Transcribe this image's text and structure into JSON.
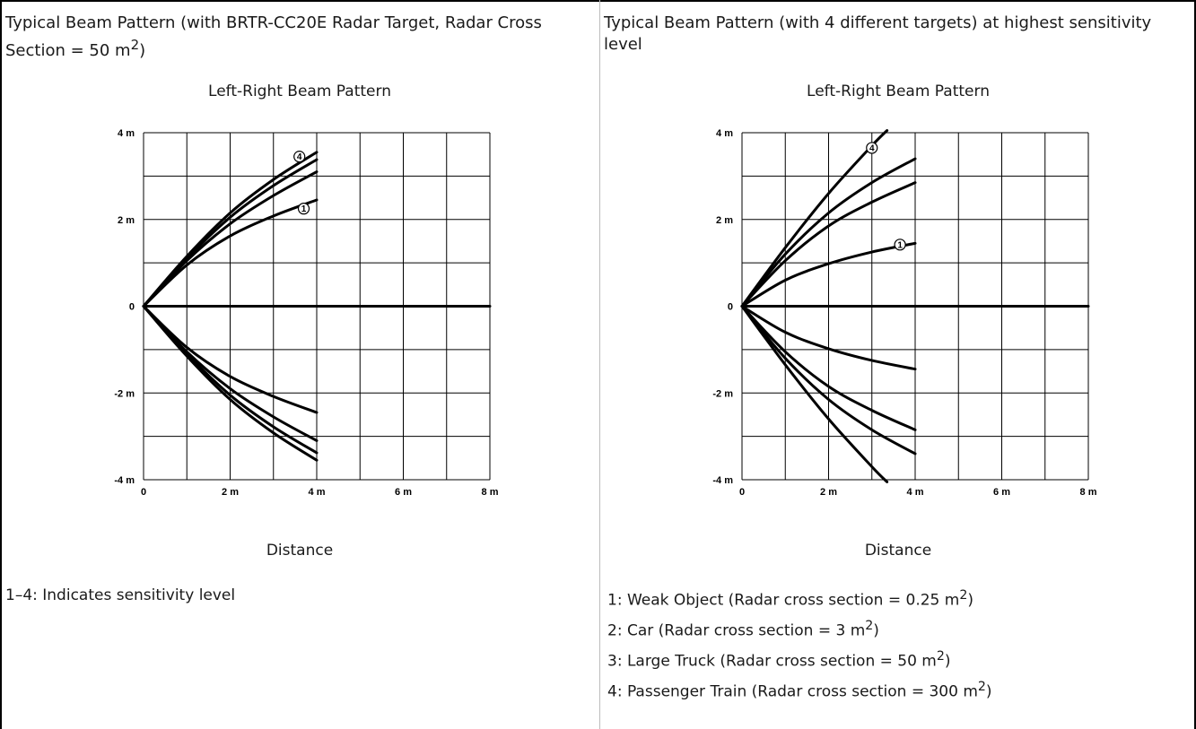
{
  "panels": [
    {
      "heading_text": "Typical Beam Pattern (with BRTR-CC20E Radar Target, Radar Cross Section = 50 m",
      "heading_sup": "2",
      "heading_tail": ")",
      "note": "1–4: Indicates sensitivity level"
    },
    {
      "heading_text": "Typical Beam Pattern (with 4 different targets) at highest sensitivity level",
      "legend": [
        {
          "text": "1: Weak Object (Radar cross section = 0.25 m",
          "sup": "2",
          "tail": ")"
        },
        {
          "text": "2: Car (Radar cross section = 3 m",
          "sup": "2",
          "tail": ")"
        },
        {
          "text": "3: Large Truck (Radar cross section = 50 m",
          "sup": "2",
          "tail": ")"
        },
        {
          "text": "4: Passenger Train (Radar cross section = 300 m",
          "sup": "2",
          "tail": ")"
        }
      ]
    }
  ],
  "chart_data": [
    {
      "type": "line",
      "title": "Left-Right Beam Pattern",
      "xlabel": "Distance",
      "ylabel": "",
      "xlim": [
        0,
        8
      ],
      "ylim": [
        -4,
        4
      ],
      "x_ticks": [
        {
          "v": 0,
          "label": "0"
        },
        {
          "v": 2,
          "label": "2 m"
        },
        {
          "v": 4,
          "label": "4 m"
        },
        {
          "v": 6,
          "label": "6 m"
        },
        {
          "v": 8,
          "label": "8 m"
        }
      ],
      "y_ticks": [
        {
          "v": 4,
          "label": "4 m"
        },
        {
          "v": 2,
          "label": "2 m"
        },
        {
          "v": 0,
          "label": "0"
        },
        {
          "v": -2,
          "label": "-2 m"
        },
        {
          "v": -4,
          "label": "-4 m"
        }
      ],
      "grid": true,
      "series": [
        {
          "label": "1",
          "points": [
            [
              0,
              0
            ],
            [
              1,
              0.95
            ],
            [
              2,
              1.62
            ],
            [
              3,
              2.08
            ],
            [
              4,
              2.45
            ]
          ]
        },
        {
          "label": "",
          "points": [
            [
              0,
              0
            ],
            [
              1,
              1.05
            ],
            [
              2,
              1.9
            ],
            [
              3,
              2.55
            ],
            [
              4,
              3.1
            ]
          ]
        },
        {
          "label": "",
          "points": [
            [
              0,
              0
            ],
            [
              1,
              1.1
            ],
            [
              2,
              2.05
            ],
            [
              3,
              2.78
            ],
            [
              4,
              3.38
            ]
          ]
        },
        {
          "label": "4",
          "points": [
            [
              0,
              0
            ],
            [
              1,
              1.15
            ],
            [
              2,
              2.15
            ],
            [
              3,
              2.92
            ],
            [
              4,
              3.55
            ]
          ]
        },
        {
          "label": "",
          "points": [
            [
              0,
              0
            ],
            [
              1,
              -0.95
            ],
            [
              2,
              -1.62
            ],
            [
              3,
              -2.08
            ],
            [
              4,
              -2.45
            ]
          ]
        },
        {
          "label": "",
          "points": [
            [
              0,
              0
            ],
            [
              1,
              -1.05
            ],
            [
              2,
              -1.9
            ],
            [
              3,
              -2.55
            ],
            [
              4,
              -3.1
            ]
          ]
        },
        {
          "label": "",
          "points": [
            [
              0,
              0
            ],
            [
              1,
              -1.1
            ],
            [
              2,
              -2.05
            ],
            [
              3,
              -2.78
            ],
            [
              4,
              -3.38
            ]
          ]
        },
        {
          "label": "",
          "points": [
            [
              0,
              0
            ],
            [
              1,
              -1.15
            ],
            [
              2,
              -2.15
            ],
            [
              3,
              -2.92
            ],
            [
              4,
              -3.55
            ]
          ]
        },
        {
          "label": "",
          "points": [
            [
              0,
              0
            ],
            [
              8,
              0
            ]
          ]
        }
      ],
      "callouts": [
        {
          "label": "1",
          "x": 3.7,
          "y": 2.25
        },
        {
          "label": "4",
          "x": 3.6,
          "y": 3.45
        }
      ]
    },
    {
      "type": "line",
      "title": "Left-Right Beam Pattern",
      "xlabel": "Distance",
      "ylabel": "",
      "xlim": [
        0,
        8
      ],
      "ylim": [
        -4,
        4
      ],
      "x_ticks": [
        {
          "v": 0,
          "label": "0"
        },
        {
          "v": 2,
          "label": "2 m"
        },
        {
          "v": 4,
          "label": "4 m"
        },
        {
          "v": 6,
          "label": "6 m"
        },
        {
          "v": 8,
          "label": "8 m"
        }
      ],
      "y_ticks": [
        {
          "v": 4,
          "label": "4 m"
        },
        {
          "v": 2,
          "label": "2 m"
        },
        {
          "v": 0,
          "label": "0"
        },
        {
          "v": -2,
          "label": "-2 m"
        },
        {
          "v": -4,
          "label": "-4 m"
        }
      ],
      "grid": true,
      "series": [
        {
          "label": "1",
          "points": [
            [
              0,
              0
            ],
            [
              1,
              0.6
            ],
            [
              2,
              0.98
            ],
            [
              3,
              1.25
            ],
            [
              4,
              1.45
            ]
          ]
        },
        {
          "label": "",
          "points": [
            [
              0,
              0
            ],
            [
              1,
              1.05
            ],
            [
              2,
              1.85
            ],
            [
              3,
              2.4
            ],
            [
              4,
              2.85
            ]
          ]
        },
        {
          "label": "",
          "points": [
            [
              0,
              0
            ],
            [
              1,
              1.2
            ],
            [
              2,
              2.15
            ],
            [
              3,
              2.85
            ],
            [
              4,
              3.4
            ]
          ]
        },
        {
          "label": "4",
          "points": [
            [
              0,
              0
            ],
            [
              1,
              1.35
            ],
            [
              2,
              2.6
            ],
            [
              3,
              3.7
            ],
            [
              3.35,
              4.05
            ]
          ]
        },
        {
          "label": "",
          "points": [
            [
              0,
              0
            ],
            [
              1,
              -0.6
            ],
            [
              2,
              -0.98
            ],
            [
              3,
              -1.25
            ],
            [
              4,
              -1.45
            ]
          ]
        },
        {
          "label": "",
          "points": [
            [
              0,
              0
            ],
            [
              1,
              -1.05
            ],
            [
              2,
              -1.85
            ],
            [
              3,
              -2.4
            ],
            [
              4,
              -2.85
            ]
          ]
        },
        {
          "label": "",
          "points": [
            [
              0,
              0
            ],
            [
              1,
              -1.2
            ],
            [
              2,
              -2.15
            ],
            [
              3,
              -2.85
            ],
            [
              4,
              -3.4
            ]
          ]
        },
        {
          "label": "",
          "points": [
            [
              0,
              0
            ],
            [
              1,
              -1.35
            ],
            [
              2,
              -2.6
            ],
            [
              3,
              -3.7
            ],
            [
              3.35,
              -4.05
            ]
          ]
        },
        {
          "label": "",
          "points": [
            [
              0,
              0
            ],
            [
              8,
              0
            ]
          ]
        }
      ],
      "callouts": [
        {
          "label": "1",
          "x": 3.65,
          "y": 1.42
        },
        {
          "label": "4",
          "x": 3.0,
          "y": 3.65
        }
      ]
    }
  ]
}
